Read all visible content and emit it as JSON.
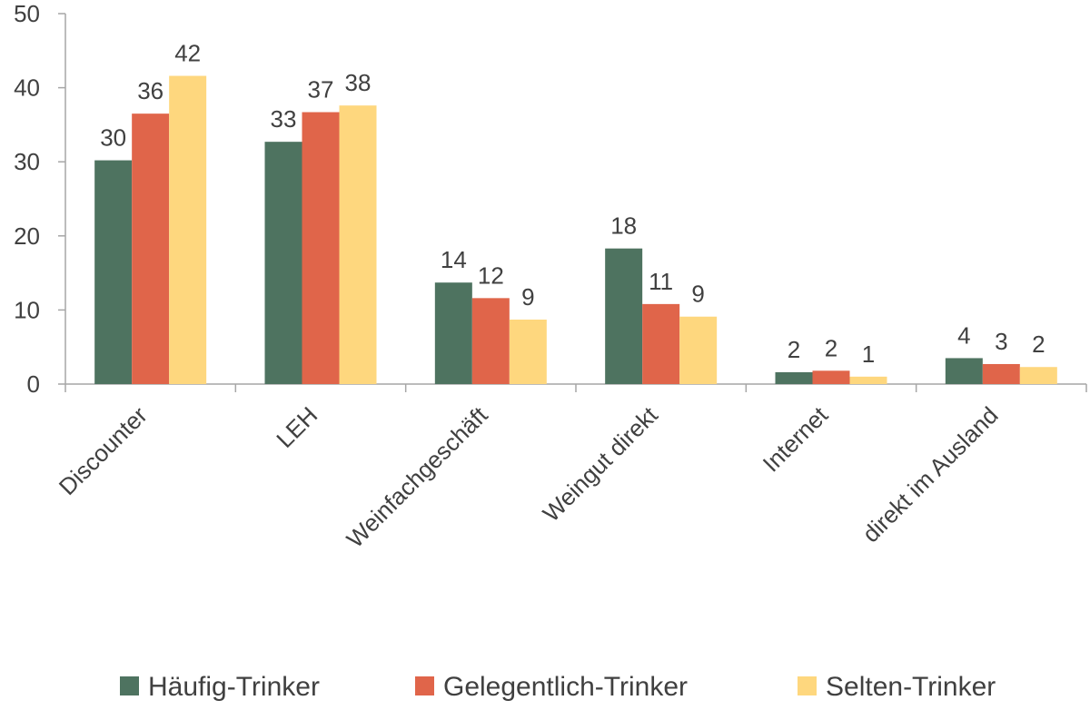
{
  "chart_data": {
    "type": "bar",
    "categories": [
      "Discounter",
      "LEH",
      "Weinfachgeschäft",
      "Weingut direkt",
      "Internet",
      "direkt im Ausland"
    ],
    "series": [
      {
        "name": "Häufig-Trinker",
        "color": "#4e7360",
        "values": [
          30.2,
          32.7,
          13.7,
          18.3,
          1.6,
          3.5
        ],
        "labels": [
          "30",
          "33",
          "14",
          "18",
          "2",
          "4"
        ]
      },
      {
        "name": "Gelegentlich-Trinker",
        "color": "#e0654a",
        "values": [
          36.5,
          36.7,
          11.6,
          10.8,
          1.8,
          2.7
        ],
        "labels": [
          "36",
          "37",
          "12",
          "11",
          "2",
          "3"
        ]
      },
      {
        "name": "Selten-Trinker",
        "color": "#fed77e",
        "values": [
          41.6,
          37.6,
          8.7,
          9.1,
          1.0,
          2.3
        ],
        "labels": [
          "42",
          "38",
          "9",
          "9",
          "1",
          "2"
        ]
      }
    ],
    "yticks": [
      "0",
      "10",
      "20",
      "30",
      "40",
      "50"
    ],
    "ylim": [
      0,
      50
    ],
    "grid": false,
    "legend_position": "bottom"
  }
}
